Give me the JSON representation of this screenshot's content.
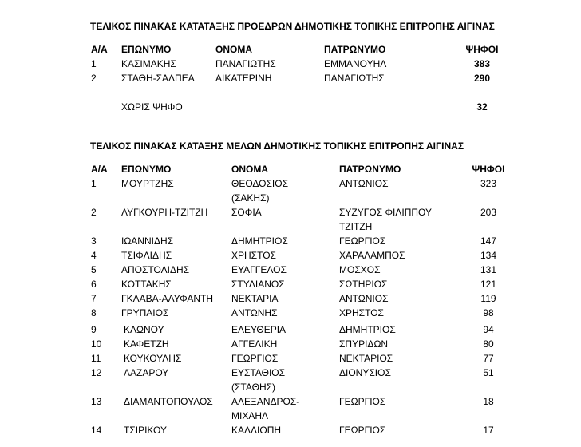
{
  "section1": {
    "title": "ΤΕΛΙΚΟΣ  ΠΙΝΑΚΑΣ ΚΑΤΑΤΑΞΗΣ  ΠΡΟΕΔΡΩΝ  ΔΗΜΟΤΙΚΗΣ ΤΟΠΙΚΗΣ ΕΠΙΤΡΟΠΗΣ ΑΙΓΙΝΑΣ",
    "headers": [
      "Α/Α",
      "ΕΠΩΝΥΜΟ",
      "ΟΝΟΜΑ",
      "ΠΑΤΡΩΝΥΜΟ",
      "ΨΗΦΟΙ"
    ],
    "rows": [
      [
        "1",
        "ΚΑΣΙΜΑΚΗΣ",
        "ΠΑΝΑΓΙΩΤΗΣ",
        "ΕΜΜΑΝΟΥΗΛ",
        "383"
      ],
      [
        "2",
        "ΣΤΑΘΗ-ΣΑΛΠΕΑ",
        "ΑΙΚΑΤΕΡΙΝΗ",
        "ΠΑΝΑΓΙΩΤΗΣ",
        "290"
      ]
    ],
    "blank_label": "ΧΩΡΙΣ ΨΗΦΟ",
    "blank_votes": "32"
  },
  "section2": {
    "title": "ΤΕΛΙΚΟΣ  ΠΙΝΑΚΑΣ ΚΑΤΑΞΗΣ  ΜΕΛΩΝ ΔΗΜΟΤΙΚΗΣ ΤΟΠΙΚΗΣ ΕΠΙΤΡΟΠΗΣ ΑΙΓΙΝΑΣ",
    "headers": [
      "Α/Α",
      "ΕΠΩΝΥΜΟ",
      "ΟΝΟΜΑ",
      "ΠΑΤΡΩΝΥΜΟ",
      "ΨΗΦΟΙ"
    ],
    "rows": [
      [
        "1",
        "ΜΟΥΡΤΖΗΣ",
        [
          "ΘΕΟΔΟΣΙΟΣ",
          "(ΣΑΚΗΣ)"
        ],
        "ΑΝΤΩΝΙΟΣ",
        "323"
      ],
      [
        "2",
        "ΛΥΓΚΟΥΡΗ-ΤΖΙΤΖΗ",
        "ΣΟΦΙΑ",
        [
          "ΣΥΖΥΓΟΣ ΦΙΛΙΠΠΟΥ",
          "ΤΖΙΤΖΗ"
        ],
        "203"
      ],
      [
        "3",
        "ΙΩΑΝΝΙΔΗΣ",
        "ΔΗΜΗΤΡΙΟΣ",
        "ΓΕΩΡΓΙΟΣ",
        "147"
      ],
      [
        "4",
        "ΤΣΙΦΛΙΔΗΣ",
        "ΧΡΗΣΤΟΣ",
        "ΧΑΡΑΛΑΜΠΟΣ",
        "134"
      ],
      [
        "5",
        "ΑΠΟΣΤΟΛΙΔΗΣ",
        "ΕΥΑΓΓΕΛΟΣ",
        "ΜΟΣΧΟΣ",
        "131"
      ],
      [
        "6",
        "ΚΟΤΤΑΚΗΣ",
        "ΣΤΥΛΙΑΝΟΣ",
        "ΣΩΤΗΡΙΟΣ",
        "121"
      ],
      [
        "7",
        "ΓΚΛΑΒΑ-ΑΛΥΦΑΝΤΗ",
        "ΝΕΚΤΑΡΙΑ",
        "ΑΝΤΩΝΙΟΣ",
        "119"
      ],
      [
        "8",
        "ΓΡΥΠΑΙΟΣ",
        "ΑΝΤΩΝΗΣ",
        "ΧΡΗΣΤΟΣ",
        "98"
      ],
      [
        "9",
        "ΚΛΩΝΟΥ",
        "ΕΛΕΥΘΕΡΙΑ",
        "ΔΗΜΗΤΡΙΟΣ",
        "94"
      ],
      [
        "10",
        "ΚΑΦΕΤΖΗ",
        "ΑΓΓΕΛΙΚΗ",
        "ΣΠΥΡΙΔΩΝ",
        "80"
      ],
      [
        "11",
        "ΚΟΥΚΟΥΛΗΣ",
        "ΓΕΩΡΓΙΟΣ",
        "ΝΕΚΤΑΡΙΟΣ",
        "77"
      ],
      [
        "12",
        "ΛΑΖΑΡΟΥ",
        [
          "ΕΥΣΤΑΘΙΟΣ",
          "(ΣΤΑΘΗΣ)"
        ],
        "ΔΙΟΝΥΣΙΟΣ",
        "51"
      ],
      [
        "13",
        "ΔΙΑΜΑΝΤΟΠΟΥΛΟΣ",
        [
          "ΑΛΕΞΑΝΔΡΟΣ-",
          "ΜΙΧΑΗΛ"
        ],
        "ΓΕΩΡΓΙΟΣ",
        "18"
      ],
      [
        "14",
        "ΤΣΙΡΙΚΟΥ",
        "ΚΑΛΛΙΟΠΗ",
        "ΓΕΩΡΓΙΟΣ",
        "17"
      ]
    ]
  }
}
